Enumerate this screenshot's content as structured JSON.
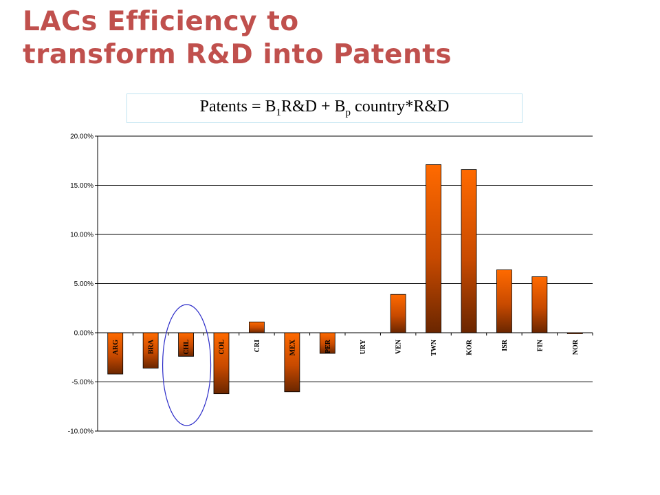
{
  "slide": {
    "title_line1": "LACs Efficiency  to",
    "title_line2": "transform R&D into Patents",
    "equation": {
      "lhs": "Patents = B",
      "sub1": "1",
      "mid": "R&D + B",
      "sub2": "p",
      "rhs": " country*R&D"
    }
  },
  "chart_data": {
    "type": "bar",
    "categories": [
      "ARG",
      "BRA",
      "CHL",
      "COL",
      "CRI",
      "MEX",
      "PER",
      "URY",
      "VEN",
      "TWN",
      "KOR",
      "ISR",
      "FIN",
      "NOR"
    ],
    "values": [
      -4.2,
      -3.6,
      -2.4,
      -6.2,
      1.1,
      -6.0,
      -2.1,
      0.0,
      3.9,
      17.1,
      16.6,
      6.4,
      5.7,
      -0.1
    ],
    "ylim": [
      -10,
      20
    ],
    "yticks": [
      20,
      15,
      10,
      5,
      0,
      -5,
      -10
    ],
    "ytick_labels": [
      "20.00%",
      "15.00%",
      "10.00%",
      "5.00%",
      "0.00%",
      "-5.00%",
      "-10.00%"
    ],
    "grid": true,
    "legend": "none",
    "highlight_category": "CHL",
    "colors": {
      "bar_top": "#ff6a00",
      "bar_bottom": "#6a2600",
      "grid": "#000000",
      "highlight_ellipse": "#2b2bc8"
    }
  }
}
